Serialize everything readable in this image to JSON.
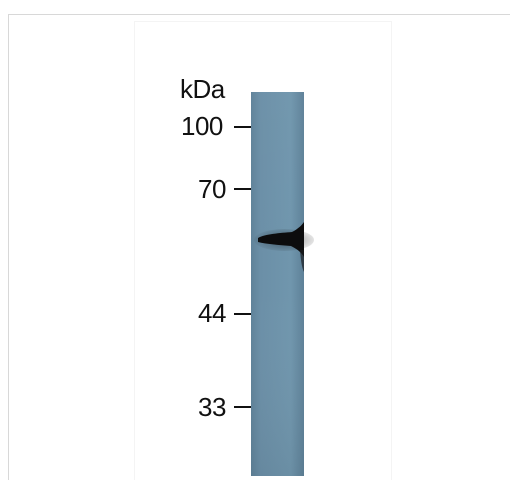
{
  "blot": {
    "unit": "kDa",
    "markers": [
      "100",
      "70",
      "44",
      "33"
    ],
    "lane_color": "#6a8ea7",
    "band_color": "#0c0c0d"
  }
}
